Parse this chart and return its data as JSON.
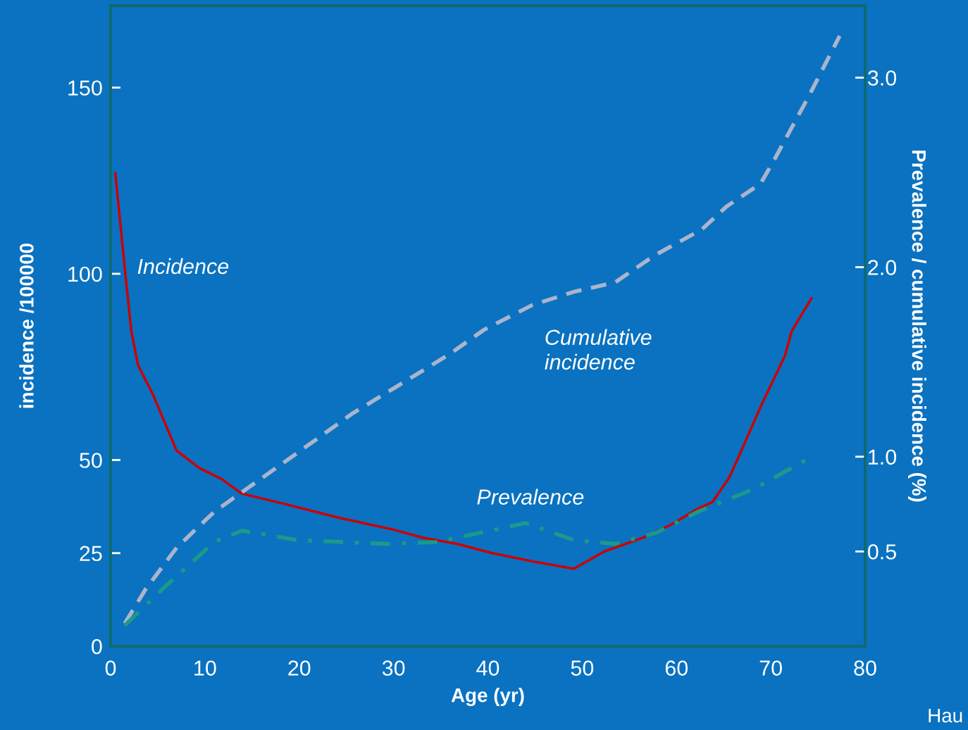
{
  "chart_data": {
    "type": "line",
    "xlabel": "Age (yr)",
    "ylabel": "incidence /100000",
    "y2label": "Prevalence / cumulative incidence (%)",
    "xlim": [
      0,
      80
    ],
    "xticks": [
      0,
      10,
      20,
      30,
      40,
      50,
      60,
      70,
      80
    ],
    "ylim": [
      0,
      172
    ],
    "yticks": [
      0,
      25,
      50,
      100,
      150
    ],
    "y2lim": [
      0,
      3.38
    ],
    "y2ticks": [
      {
        "value": 0.5,
        "label": "0.5"
      },
      {
        "value": 1.0,
        "label": "1.0"
      },
      {
        "value": 2.0,
        "label": "2.0"
      },
      {
        "value": 3.0,
        "label": "3.0"
      }
    ],
    "grid": false,
    "legend": false,
    "annotations": [
      "Hau"
    ],
    "series": [
      {
        "name": "Incidence",
        "color": "#cc0000",
        "line_style": "solid",
        "x": [
          0.5,
          1.5,
          2.2,
          2.9,
          4.5,
          7.0,
          9.5,
          11.7,
          13.9,
          18.3,
          24.2,
          30,
          33,
          36.7,
          40.3,
          44.7,
          49.1,
          52.4,
          56.5,
          59.4,
          62.3,
          63.8,
          65.6,
          66.7,
          68.9,
          71.5,
          72.2,
          74.3
        ],
        "values": [
          127,
          101.5,
          84.5,
          75.5,
          67.5,
          52.5,
          47.7,
          45,
          41,
          38.3,
          34.5,
          31.3,
          29.2,
          27.5,
          25.1,
          22.8,
          20.8,
          25.5,
          29.2,
          32.6,
          37,
          38.7,
          45.3,
          51.5,
          64.2,
          78,
          84.5,
          93.4
        ]
      },
      {
        "name": "Cumulative\nincidence",
        "color": "#aab4cc",
        "line_style": "dashed",
        "axis": "y2",
        "x": [
          1.5,
          3.7,
          7.0,
          11,
          14.7,
          19.8,
          25.7,
          30,
          35.9,
          39.6,
          44.7,
          49.1,
          53.5,
          57.6,
          62.7,
          65.3,
          68.9,
          70.4,
          74,
          77.3
        ],
        "values": [
          0.12,
          0.3,
          0.52,
          0.71,
          0.84,
          1.02,
          1.23,
          1.36,
          1.54,
          1.67,
          1.8,
          1.87,
          1.92,
          2.06,
          2.2,
          2.32,
          2.44,
          2.57,
          2.9,
          3.22
        ]
      },
      {
        "name": "Prevalence",
        "color": "#1a9a8a",
        "line_style": "dashdot",
        "axis": "y2",
        "x": [
          1.5,
          5.9,
          11,
          13.9,
          19.8,
          29.3,
          34.5,
          40.3,
          44,
          49.1,
          53.5,
          57.9,
          62.3,
          68.2,
          74
        ],
        "values": [
          0.11,
          0.32,
          0.55,
          0.61,
          0.56,
          0.54,
          0.55,
          0.61,
          0.65,
          0.56,
          0.54,
          0.6,
          0.71,
          0.83,
          0.99
        ]
      }
    ]
  }
}
